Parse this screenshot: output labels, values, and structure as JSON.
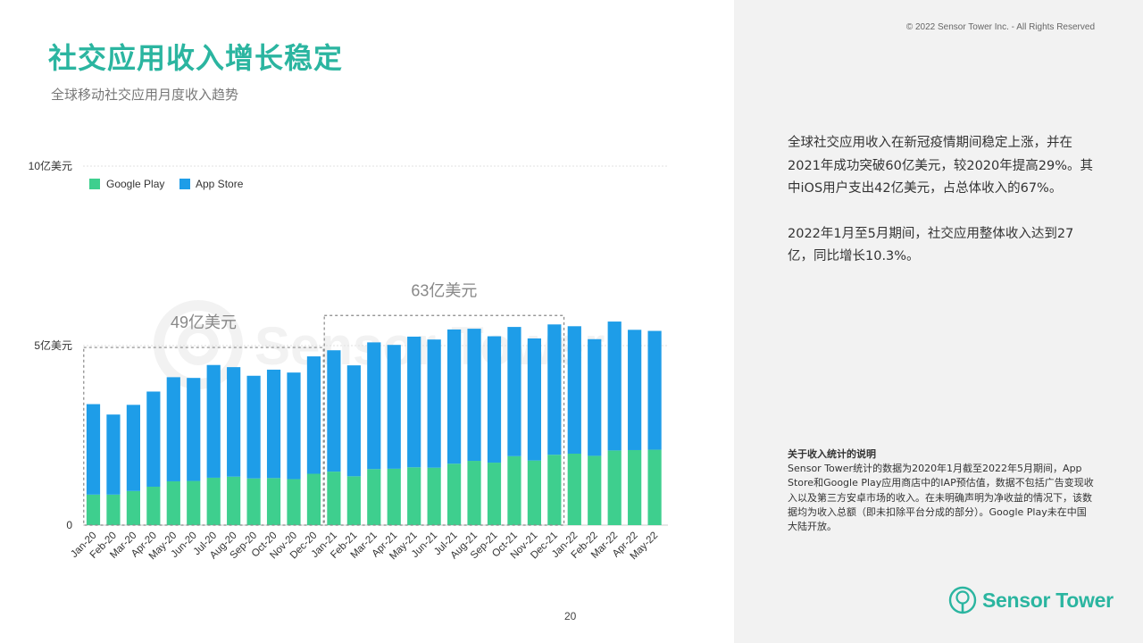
{
  "header": {
    "title": "社交应用收入增长稳定",
    "subtitle": "全球移动社交应用月度收入趋势",
    "copyright": "© 2022 Sensor Tower Inc. - All Rights Reserved"
  },
  "summary": {
    "paragraph1": "全球社交应用收入在新冠疫情期间稳定上涨，并在2021年成功突破60亿美元，较2020年提高29%。其中iOS用户支出42亿美元，占总体收入的67%。",
    "paragraph2": "2022年1月至5月期间，社交应用整体收入达到27亿，同比增长10.3%。"
  },
  "note": {
    "title": "关于收入统计的说明",
    "body": "Sensor Tower统计的数据为2020年1月截至2022年5月期间，App Store和Google Play应用商店中的IAP预估值，数据不包括广告变现收入以及第三方安卓市场的收入。在未明确声明为净收益的情况下，该数据均为收入总额（即未扣除平台分成的部分）。Google Play未在中国大陆开放。"
  },
  "footer": {
    "page_number": "20",
    "logo_text": "Sensor Tower"
  },
  "colors": {
    "title": "#2bb5a0",
    "google_play": "#3ecf8e",
    "app_store": "#1e9de8",
    "annotation_box": "#888888",
    "right_panel_bg": "#f2f2f2"
  },
  "chart_data": {
    "type": "bar",
    "stacked": true,
    "categories": [
      "Jan-20",
      "Feb-20",
      "Mar-20",
      "Apr-20",
      "May-20",
      "Jun-20",
      "Jul-20",
      "Aug-20",
      "Sep-20",
      "Oct-20",
      "Nov-20",
      "Dec-20",
      "Jan-21",
      "Feb-21",
      "Mar-21",
      "Apr-21",
      "May-21",
      "Jun-21",
      "Jul-21",
      "Aug-21",
      "Sep-21",
      "Oct-21",
      "Nov-21",
      "Dec-21",
      "Jan-22",
      "Feb-22",
      "Mar-22",
      "Apr-22",
      "May-22"
    ],
    "series": [
      {
        "name": "Google Play",
        "values": [
          0.85,
          0.85,
          0.95,
          1.07,
          1.22,
          1.23,
          1.32,
          1.35,
          1.3,
          1.31,
          1.28,
          1.43,
          1.49,
          1.36,
          1.56,
          1.57,
          1.61,
          1.6,
          1.71,
          1.79,
          1.74,
          1.92,
          1.8,
          1.96,
          1.99,
          1.93,
          2.08,
          2.09,
          2.1
        ]
      },
      {
        "name": "App Store",
        "values": [
          2.52,
          2.23,
          2.4,
          2.65,
          2.9,
          2.87,
          3.14,
          3.05,
          2.86,
          3.02,
          2.97,
          3.27,
          3.38,
          3.09,
          3.53,
          3.45,
          3.64,
          3.57,
          3.74,
          3.68,
          3.52,
          3.6,
          3.4,
          3.63,
          3.55,
          3.25,
          3.59,
          3.35,
          3.31
        ]
      }
    ],
    "yticks": [
      {
        "value": 0,
        "label": "0"
      },
      {
        "value": 5,
        "label": "5亿美元"
      },
      {
        "value": 10,
        "label": "10亿美元"
      }
    ],
    "ylim": [
      0,
      10
    ],
    "grid": true,
    "legend_position": "top-left",
    "annotations": [
      {
        "label": "49亿美元",
        "range": [
          0,
          11
        ]
      },
      {
        "label": "63亿美元",
        "range": [
          12,
          23
        ]
      }
    ]
  }
}
